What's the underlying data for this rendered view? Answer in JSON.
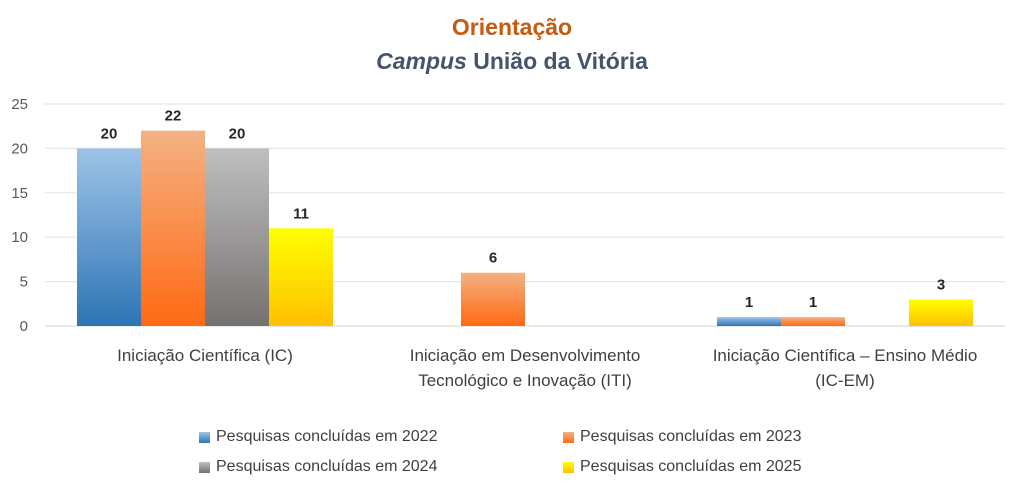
{
  "chart_data": {
    "type": "bar",
    "title": "Orientação",
    "subtitle_italic": "Campus",
    "subtitle_rest": " União da Vitória",
    "categories": [
      [
        "Iniciação Científica (IC)"
      ],
      [
        "Iniciação em Desenvolvimento",
        "Tecnológico e Inovação (ITI)"
      ],
      [
        "Iniciação Científica – Ensino Médio",
        "(IC-EM)"
      ]
    ],
    "series": [
      {
        "name": "Pesquisas concluídas em 2022",
        "values": [
          20,
          0,
          1
        ],
        "color": "#2e75b6",
        "light": "#9dc3e6"
      },
      {
        "name": "Pesquisas concluídas em 2023",
        "values": [
          22,
          6,
          1
        ],
        "color": "#ff6a13",
        "light": "#f4b183"
      },
      {
        "name": "Pesquisas concluídas em 2024",
        "values": [
          20,
          0,
          0
        ],
        "color": "#767171",
        "light": "#bfbfbf"
      },
      {
        "name": "Pesquisas concluídas em 2025",
        "values": [
          11,
          0,
          3
        ],
        "color": "#ffc000",
        "light": "#ffff00"
      }
    ],
    "ylim": [
      0,
      25
    ],
    "yticks": [
      0,
      5,
      10,
      15,
      20,
      25
    ],
    "grid": true,
    "legend": "bottom"
  }
}
